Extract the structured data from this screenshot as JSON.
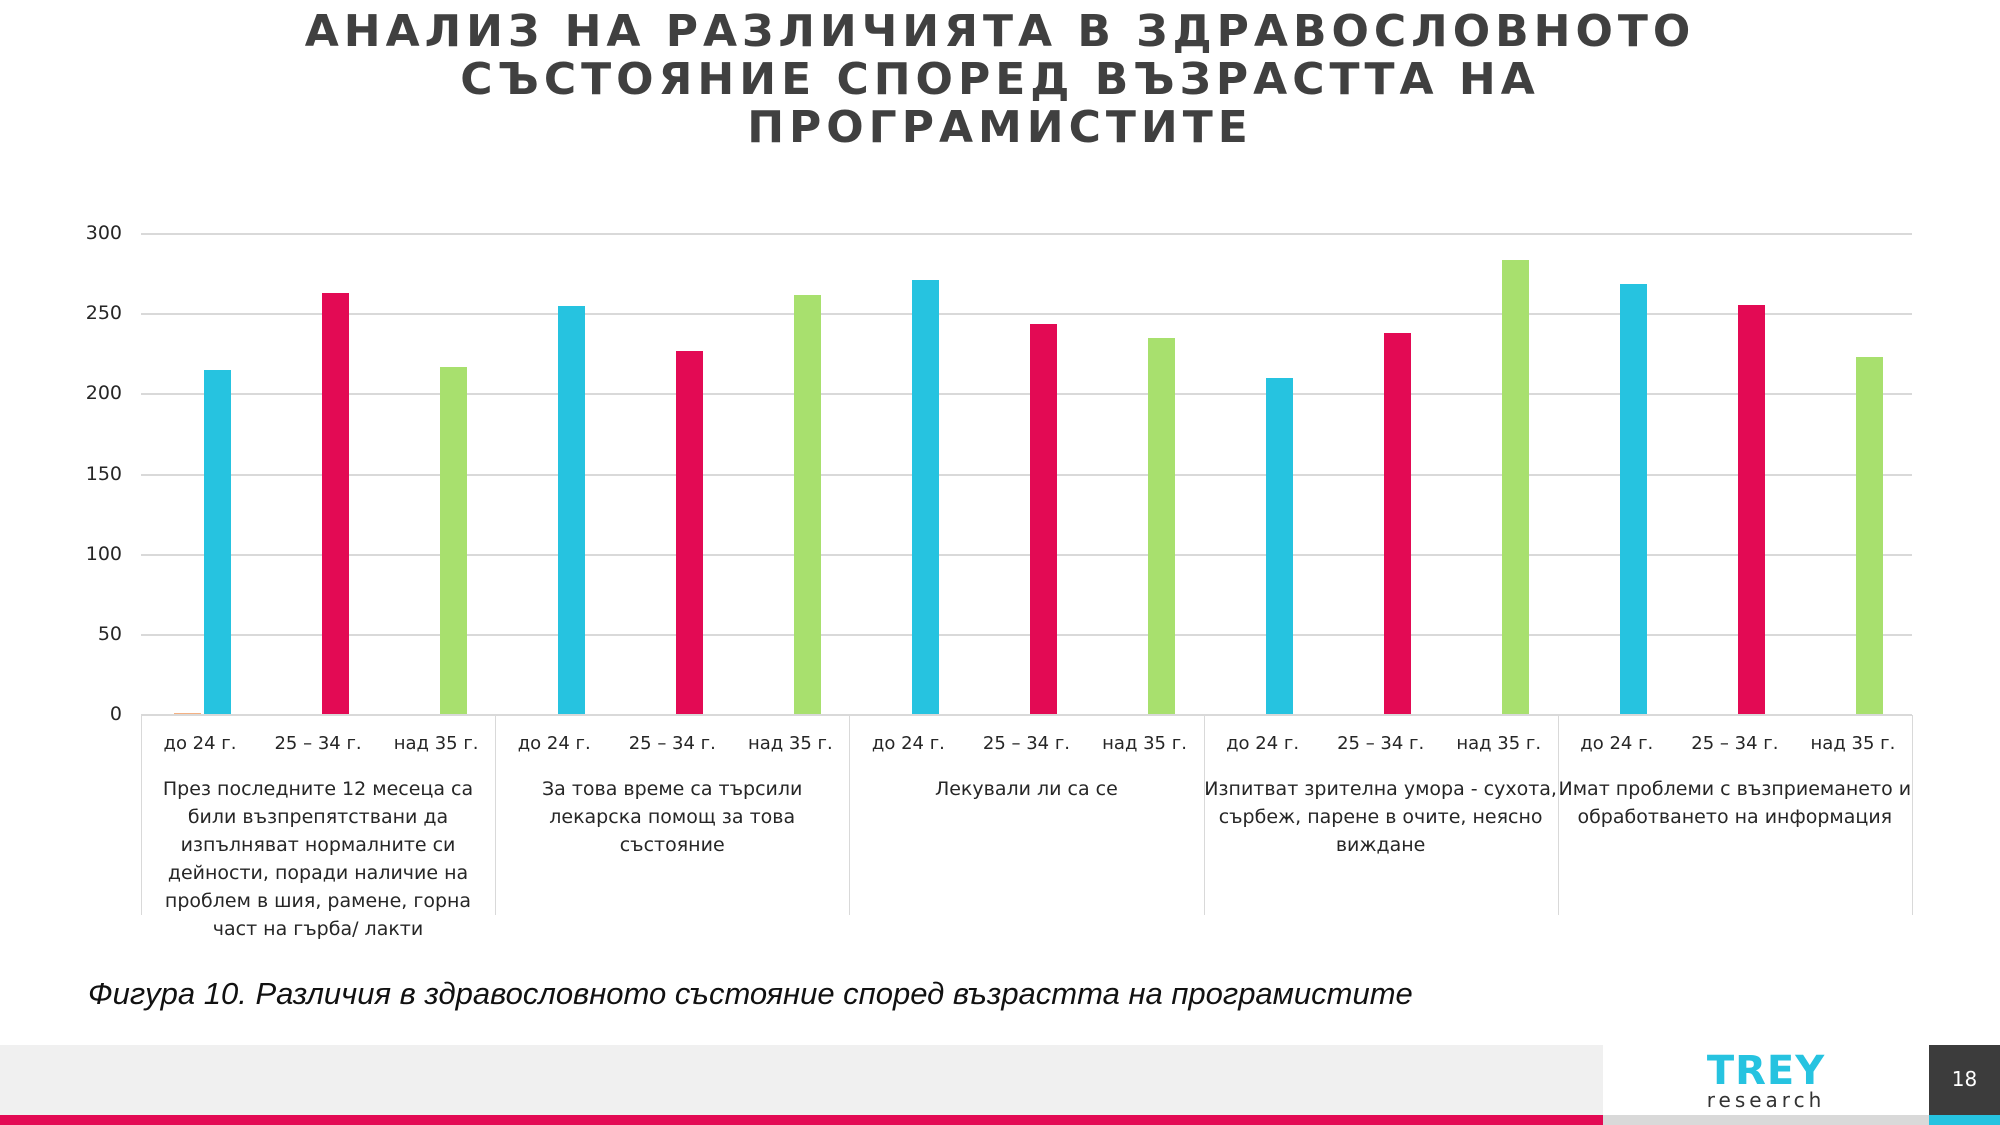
{
  "slide": {
    "title_lines": [
      "АНАЛИЗ НА РАЗЛИЧИЯТА В ЗДРАВОСЛОВНОТО",
      "СЪСТОЯНИЕ СПОРЕД ВЪЗРАСТТА НА",
      "ПРОГРАМИСТИТЕ"
    ],
    "caption": "Фигура 10. Различия в здравословното състояние според възрастта на програмистите",
    "page_number": "18",
    "logo": {
      "main": "TREY",
      "sub": "research"
    }
  },
  "colors": {
    "title": "#404040",
    "cyan": "#26c3e0",
    "red": "#e30a54",
    "green": "#a8e06e",
    "orange": "#f4b183",
    "grid": "#d9d9d9",
    "footer_gray": "#f0f0f0",
    "page_box": "#3c3c3c"
  },
  "chart_data": {
    "type": "bar",
    "title": "АНАЛИЗ НА РАЗЛИЧИЯТА В ЗДРАВОСЛОВНОТО СЪСТОЯНИЕ СПОРЕД ВЪЗРАСТТА НА ПРОГРАМИСТИТЕ",
    "xlabel": "",
    "ylabel": "",
    "ylim": [
      0,
      300
    ],
    "yticks": [
      0,
      50,
      100,
      150,
      200,
      250,
      300
    ],
    "grid": true,
    "legend": null,
    "groups": [
      "През последните 12 месеца са били възпрепятствани да изпълняват нормалните си дейности, поради наличие на проблем в шия, рамене, горна част на гърба/ лакти",
      "За това време са търсили лекарска помощ за това състояние",
      "Лекували ли са се",
      "Изпитват зрителна умора - сухота, сърбеж, парене в очите, неясно виждане",
      "Имат проблеми с възприемането и обработването на информация"
    ],
    "categories": [
      "до 24 г.",
      "25 – 34 г.",
      "над 35 г."
    ],
    "category_colors": [
      "#26c3e0",
      "#e30a54",
      "#a8e06e"
    ],
    "values": [
      [
        215,
        263,
        217
      ],
      [
        255,
        227,
        262
      ],
      [
        271,
        244,
        235
      ],
      [
        210,
        238,
        284
      ],
      [
        269,
        256,
        223
      ]
    ],
    "annotations": [
      "tiny near-zero orange bar (~1) left of first cyan bar"
    ]
  }
}
